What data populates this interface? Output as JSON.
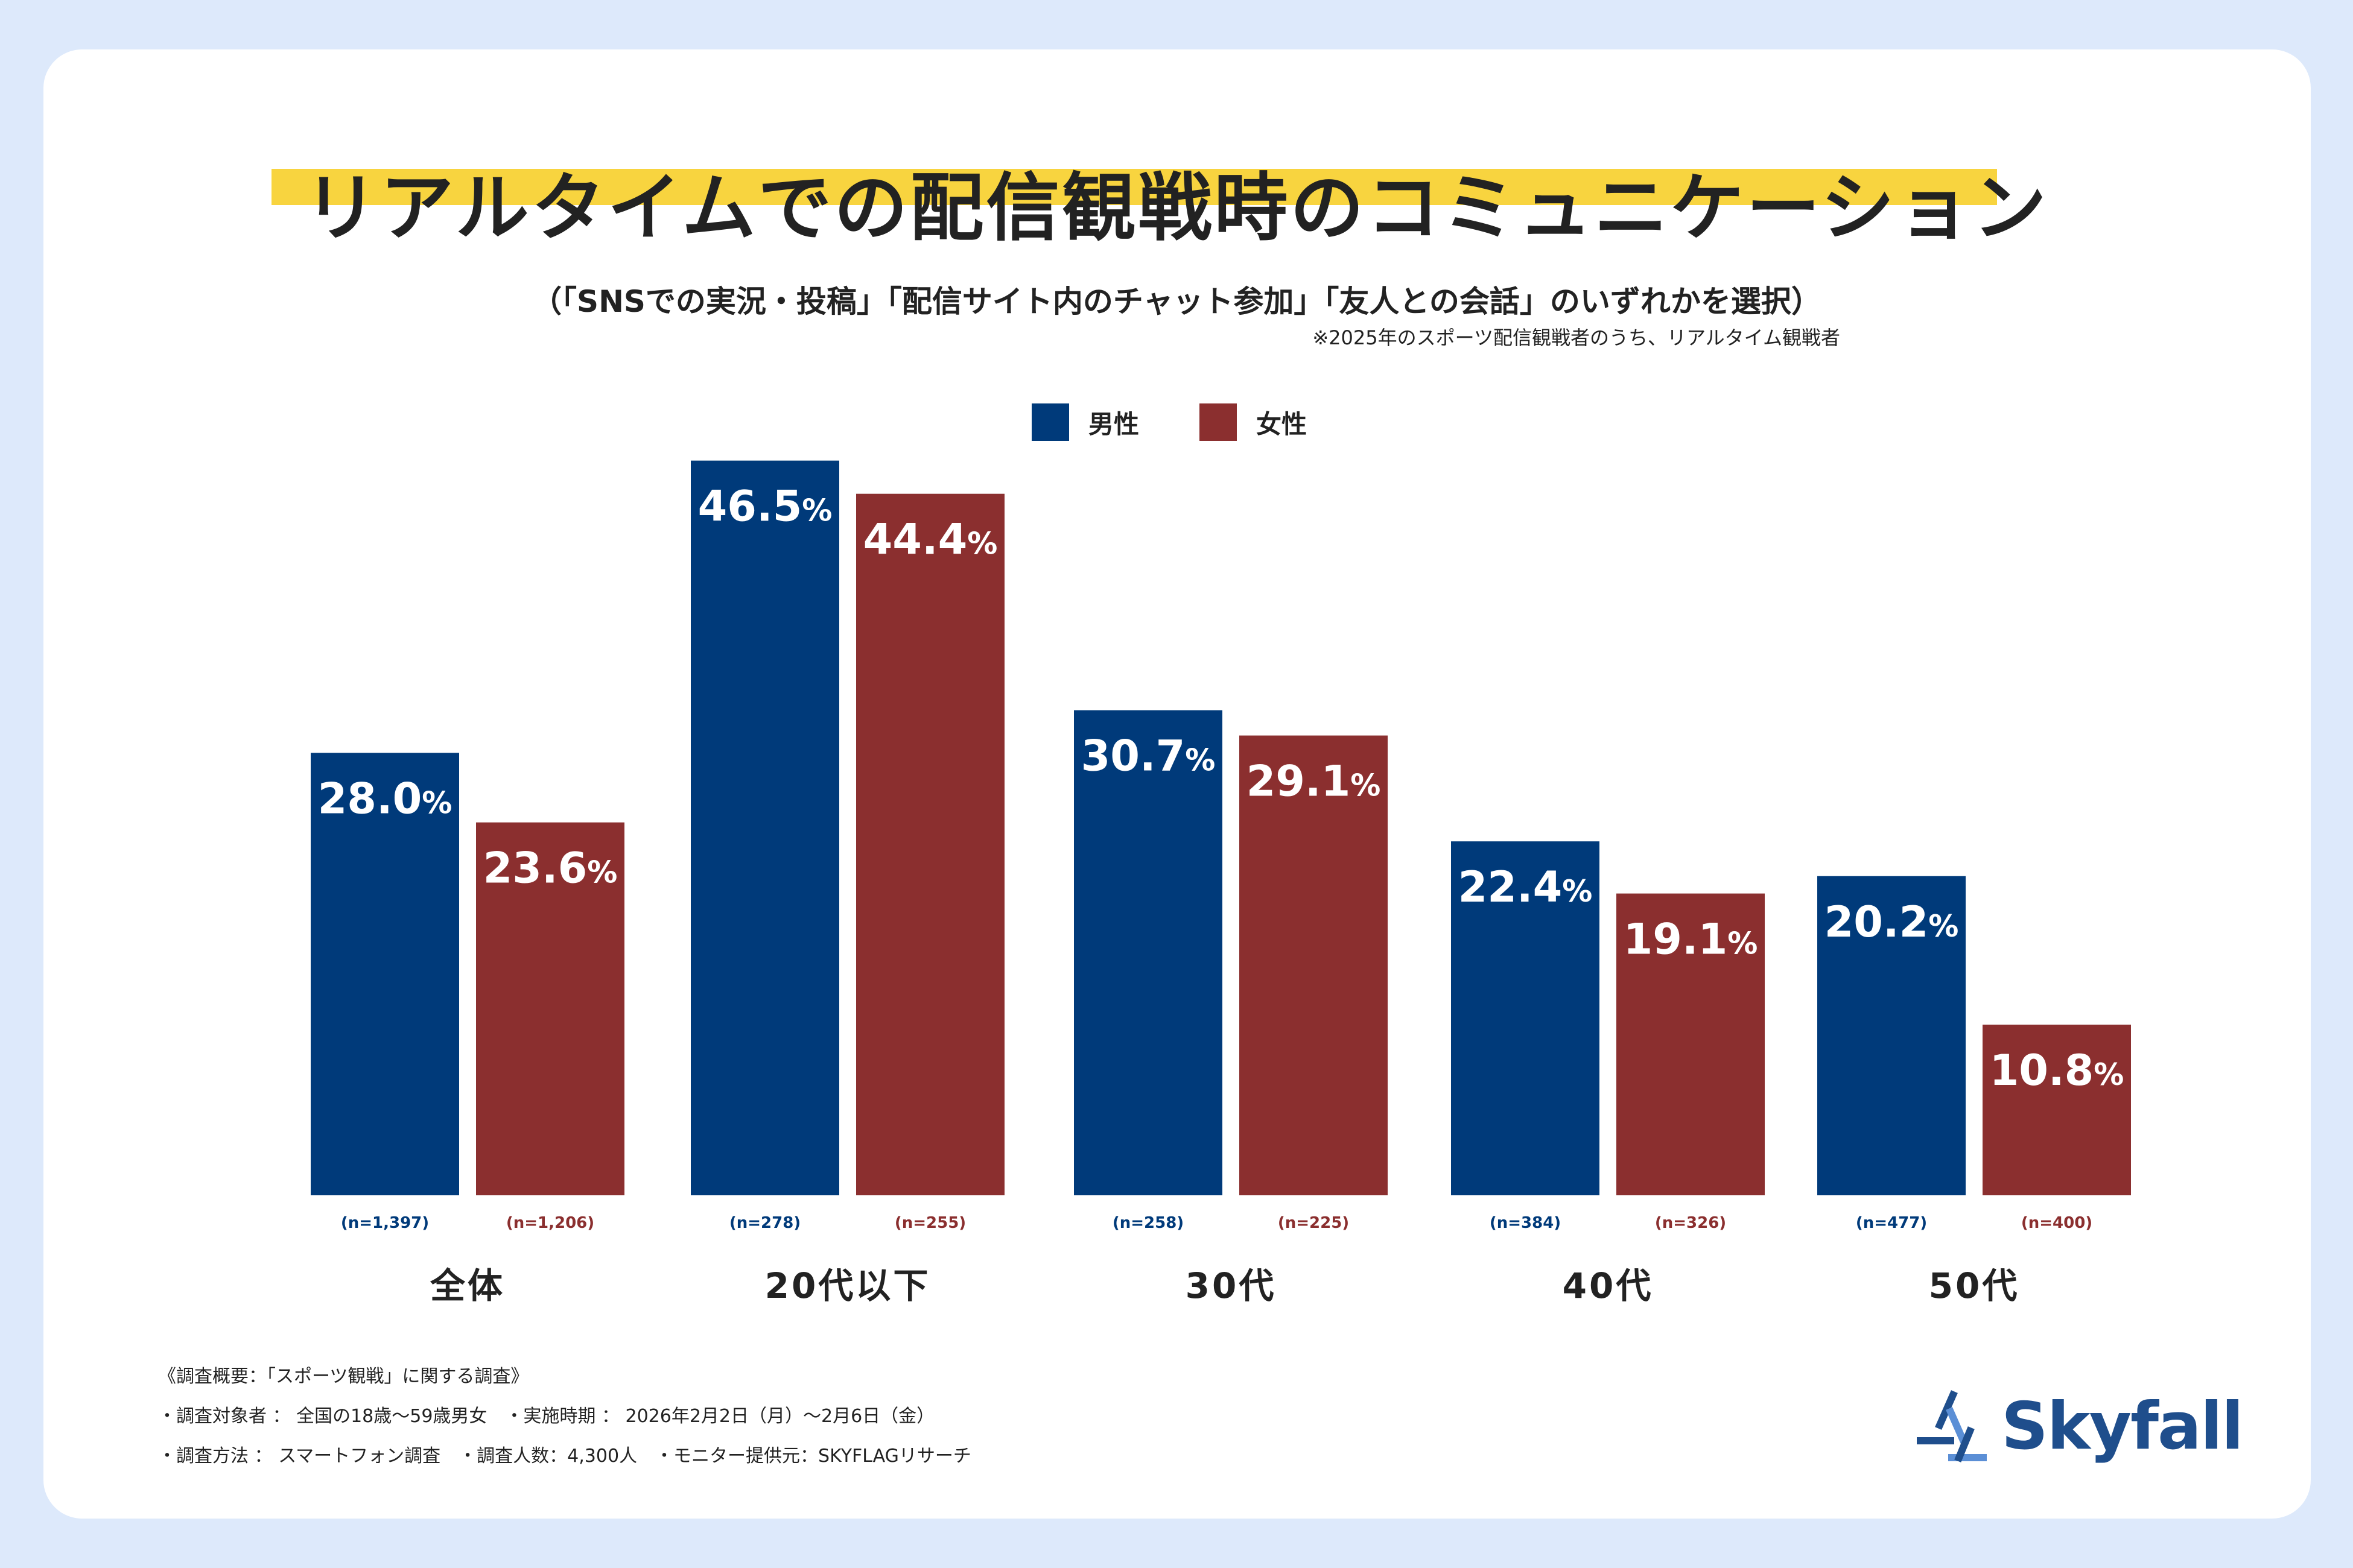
{
  "title": "リアルタイムでの配信観戦時のコミュニケーション",
  "subtitle": "（「SNSでの実況・投稿」「配信サイト内のチャット参加」「友人との会話」のいずれかを選択）",
  "note": "※2025年のスポーツ配信観戦者のうち、リアルタイム観戦者",
  "legend": [
    {
      "label": "男性",
      "color": "#003a7a"
    },
    {
      "label": "女性",
      "color": "#8b2f2f"
    }
  ],
  "colors": {
    "male": "#003a7a",
    "female": "#8b2f2f",
    "highlight": "#f8d43f",
    "background": "#dde9fb"
  },
  "chart_data": {
    "type": "bar",
    "title": "リアルタイムでの配信観戦時のコミュニケーション",
    "unit": "%",
    "categories": [
      "全体",
      "20代以下",
      "30代",
      "40代",
      "50代"
    ],
    "series": [
      {
        "name": "男性",
        "values": [
          28.0,
          46.5,
          30.7,
          22.4,
          20.2
        ],
        "value_labels": [
          "28.0",
          "46.5",
          "30.7",
          "22.4",
          "20.2"
        ],
        "n": [
          "(n=1,397)",
          "(n=278)",
          "(n=258)",
          "(n=384)",
          "(n=477)"
        ]
      },
      {
        "name": "女性",
        "values": [
          23.6,
          44.4,
          29.1,
          19.1,
          10.8
        ],
        "value_labels": [
          "23.6",
          "44.4",
          "29.1",
          "19.1",
          "10.8"
        ],
        "n": [
          "(n=1,206)",
          "(n=255)",
          "(n=225)",
          "(n=326)",
          "(n=400)"
        ]
      }
    ],
    "ylim": [
      0,
      55
    ],
    "grid": false,
    "xlabel": "",
    "ylabel": ""
  },
  "footnotes": [
    "《調査概要：「スポーツ観戦」に関する調査》",
    "・調査対象者 ： 全国の18歳〜59歳男女　・実施時期 ： 2026年2月2日（月）〜2月6日（金）",
    "・調査方法 ： スマートフォン調査　・調査人数：4,300人　・モニター提供元：SKYFLAGリサーチ"
  ],
  "logo": {
    "text": "Skyfall"
  }
}
